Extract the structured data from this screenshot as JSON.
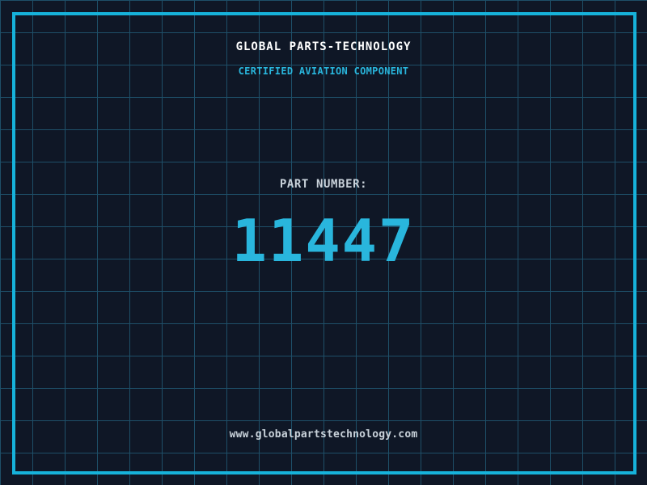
{
  "page": {
    "title": "GLOBAL PARTS-TECHNOLOGY",
    "subtitle": "CERTIFIED AVIATION COMPONENT",
    "part_label": "PART NUMBER:",
    "part_number": "11447",
    "website": "www.globalpartstechnology.com"
  },
  "colors": {
    "background": "#0f1726",
    "grid_line": "#1e4f68",
    "frame": "#16b2da",
    "accent_cyan": "#29b6dd",
    "title_text": "#ffffff",
    "muted_text": "#c9d2da"
  }
}
